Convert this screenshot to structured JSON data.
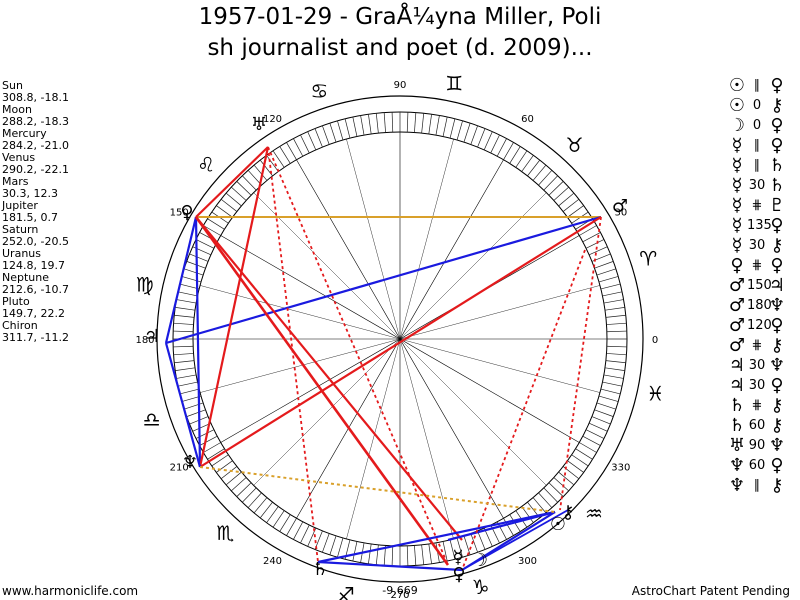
{
  "title": {
    "line1": "1957-01-29 - GraÅ¼yna Miller, Poli",
    "line2": "sh journalist and poet (d. 2009)..."
  },
  "planets": [
    {
      "name": "Sun",
      "coords": "308.8, -18.1"
    },
    {
      "name": "Moon",
      "coords": "288.2, -18.3"
    },
    {
      "name": "Mercury",
      "coords": "284.2, -21.0"
    },
    {
      "name": "Venus",
      "coords": "290.2, -22.1"
    },
    {
      "name": "Mars",
      "coords": "30.3, 12.3"
    },
    {
      "name": "Jupiter",
      "coords": "181.5, 0.7"
    },
    {
      "name": "Saturn",
      "coords": "252.0, -20.5"
    },
    {
      "name": "Uranus",
      "coords": "124.8, 19.7"
    },
    {
      "name": "Neptune",
      "coords": "212.6, -10.7"
    },
    {
      "name": "Pluto",
      "coords": "149.7, 22.2"
    },
    {
      "name": "Chiron",
      "coords": "311.7, -11.2"
    }
  ],
  "aspects": [
    {
      "p1": "☉",
      "angle": "∥",
      "p2": "♀"
    },
    {
      "p1": "☉",
      "angle": "0",
      "p2": "⚷"
    },
    {
      "p1": "☽",
      "angle": "0",
      "p2": "♀"
    },
    {
      "p1": "☿",
      "angle": "∥",
      "p2": "♀"
    },
    {
      "p1": "☿",
      "angle": "∥",
      "p2": "♄"
    },
    {
      "p1": "☿",
      "angle": "30",
      "p2": "♄"
    },
    {
      "p1": "☿",
      "angle": "⋕",
      "p2": "♇"
    },
    {
      "p1": "☿",
      "angle": "135",
      "p2": "♀"
    },
    {
      "p1": "☿",
      "angle": "30",
      "p2": "⚷"
    },
    {
      "p1": "♀",
      "angle": "⋕",
      "p2": "♀"
    },
    {
      "p1": "♂",
      "angle": "150",
      "p2": "♃"
    },
    {
      "p1": "♂",
      "angle": "180",
      "p2": "♆"
    },
    {
      "p1": "♂",
      "angle": "120",
      "p2": "♀"
    },
    {
      "p1": "♂",
      "angle": "⋕",
      "p2": "⚷"
    },
    {
      "p1": "♃",
      "angle": "30",
      "p2": "♆"
    },
    {
      "p1": "♃",
      "angle": "30",
      "p2": "♀"
    },
    {
      "p1": "♄",
      "angle": "⋕",
      "p2": "⚷"
    },
    {
      "p1": "♄",
      "angle": "60",
      "p2": "⚷"
    },
    {
      "p1": "♅",
      "angle": "90",
      "p2": "♆"
    },
    {
      "p1": "♆",
      "angle": "60",
      "p2": "♀"
    },
    {
      "p1": "♆",
      "angle": "∥",
      "p2": "⚷"
    }
  ],
  "wheel": {
    "degree_labels": [
      "90",
      "120",
      "60",
      "150",
      "30",
      "180",
      "0",
      "210",
      "330",
      "240",
      "300",
      "270"
    ],
    "bottom_value": "-9,669",
    "signs": [
      {
        "name": "aries-glyph",
        "glyph": "♈"
      },
      {
        "name": "taurus-glyph",
        "glyph": "♉"
      },
      {
        "name": "gemini-glyph",
        "glyph": "♊"
      },
      {
        "name": "cancer-glyph",
        "glyph": "♋"
      },
      {
        "name": "leo-glyph",
        "glyph": "♌"
      },
      {
        "name": "virgo-glyph",
        "glyph": "♍"
      },
      {
        "name": "libra-glyph",
        "glyph": "♎"
      },
      {
        "name": "scorpio-glyph",
        "glyph": "♏"
      },
      {
        "name": "sagittarius-glyph",
        "glyph": "♐"
      },
      {
        "name": "capricorn-glyph",
        "glyph": "♑"
      },
      {
        "name": "aquarius-glyph",
        "glyph": "♒"
      },
      {
        "name": "pisces-glyph",
        "glyph": "♓"
      }
    ],
    "planet_glyphs": [
      {
        "name": "mars-glyph",
        "glyph": "♂"
      },
      {
        "name": "uranus-glyph",
        "glyph": "♅"
      },
      {
        "name": "pluto-glyph",
        "glyph": "♀"
      },
      {
        "name": "jupiter-glyph",
        "glyph": "♃"
      },
      {
        "name": "neptune-glyph",
        "glyph": "♆"
      },
      {
        "name": "saturn-glyph",
        "glyph": "♄"
      },
      {
        "name": "mercury-glyph",
        "glyph": "☿"
      },
      {
        "name": "venus-glyph",
        "glyph": "♀"
      },
      {
        "name": "sun-glyph",
        "glyph": "☉"
      },
      {
        "name": "moon-glyph",
        "glyph": "☽"
      },
      {
        "name": "chiron-glyph",
        "glyph": "⚷"
      }
    ],
    "colors": {
      "red": "#e41a1c",
      "blue": "#1a1adf",
      "gold": "#d9a02a",
      "ring": "#000000"
    }
  },
  "footer": {
    "left": "www.harmoniclife.com",
    "right": "AstroChart Patent Pending"
  }
}
